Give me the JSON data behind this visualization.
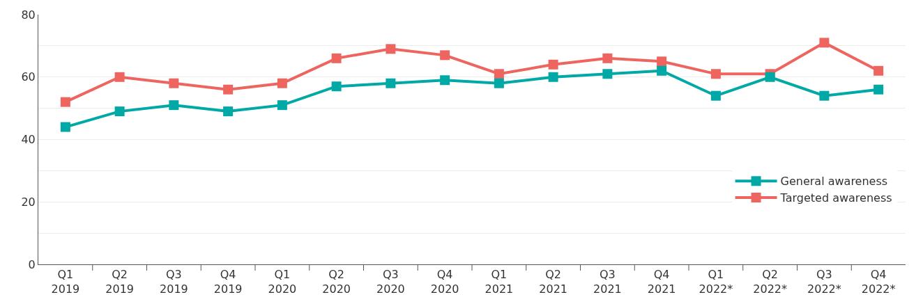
{
  "chart_data": {
    "type": "line",
    "categories": [
      "Q1\n2019",
      "Q2\n2019",
      "Q3\n2019",
      "Q4\n2019",
      "Q1\n2020",
      "Q2\n2020",
      "Q3\n2020",
      "Q4\n2020",
      "Q1\n2021",
      "Q2\n2021",
      "Q3\n2021",
      "Q4\n2021",
      "Q1\n2022*",
      "Q2\n2022*",
      "Q3\n2022*",
      "Q4\n2022*"
    ],
    "series": [
      {
        "name": "General awareness",
        "color": "#00a9a5",
        "values": [
          44,
          49,
          51,
          49,
          51,
          57,
          58,
          59,
          58,
          60,
          61,
          62,
          54,
          60,
          54,
          56
        ]
      },
      {
        "name": "Targeted awareness",
        "color": "#ee6560",
        "values": [
          52,
          60,
          58,
          56,
          58,
          66,
          69,
          67,
          61,
          64,
          66,
          65,
          61,
          61,
          71,
          62
        ]
      }
    ],
    "ylim": [
      0,
      80
    ],
    "yticks": [
      0,
      {
        "value": 10,
        "label": null
      },
      20,
      {
        "value": 30,
        "label": null
      },
      40,
      {
        "value": 50,
        "label": null
      },
      60,
      {
        "value": 70,
        "label": null
      },
      80
    ],
    "grid": "y",
    "legend": "bottom right",
    "marker": "square",
    "line_style": "solid"
  }
}
